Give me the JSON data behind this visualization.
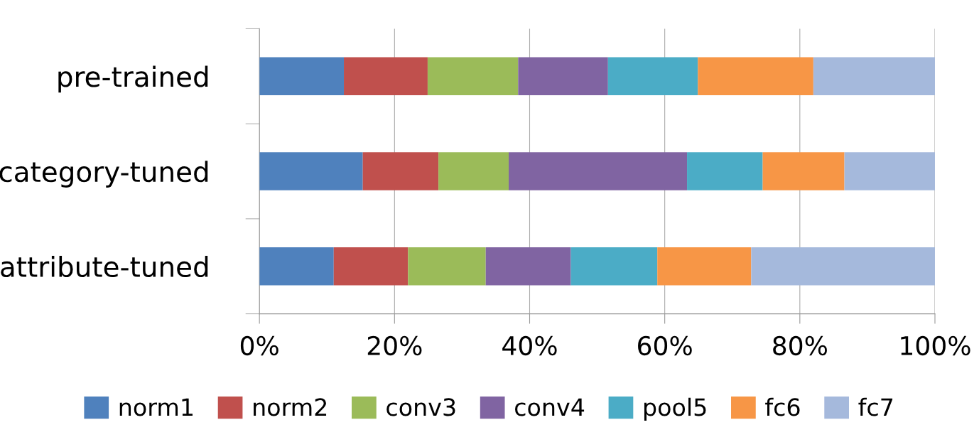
{
  "chart_data": {
    "type": "bar",
    "orientation": "horizontal",
    "stacked": true,
    "categories": [
      "pre-trained",
      "category-tuned",
      "attribute-tuned"
    ],
    "series": [
      {
        "name": "norm1",
        "color": "#4f81bd",
        "values": [
          12.5,
          15.3,
          11.0
        ]
      },
      {
        "name": "norm2",
        "color": "#c0504d",
        "values": [
          12.4,
          11.2,
          11.0
        ]
      },
      {
        "name": "conv3",
        "color": "#9bbb59",
        "values": [
          13.4,
          10.4,
          11.5
        ]
      },
      {
        "name": "conv4",
        "color": "#8064a2",
        "values": [
          13.3,
          26.4,
          12.6
        ]
      },
      {
        "name": "pool5",
        "color": "#4bacc6",
        "values": [
          13.3,
          11.2,
          12.8
        ]
      },
      {
        "name": "fc6",
        "color": "#f79646",
        "values": [
          17.1,
          12.1,
          13.9
        ]
      },
      {
        "name": "fc7",
        "color": "#a5b9dc",
        "values": [
          18.0,
          13.4,
          27.2
        ]
      }
    ],
    "xlim": [
      0,
      100
    ],
    "xticks": [
      {
        "value": 0,
        "label": "0%"
      },
      {
        "value": 20,
        "label": "20%"
      },
      {
        "value": 40,
        "label": "40%"
      },
      {
        "value": 60,
        "label": "60%"
      },
      {
        "value": 80,
        "label": "80%"
      },
      {
        "value": 100,
        "label": "100%"
      }
    ],
    "grid": "x",
    "legend": "bottom"
  }
}
